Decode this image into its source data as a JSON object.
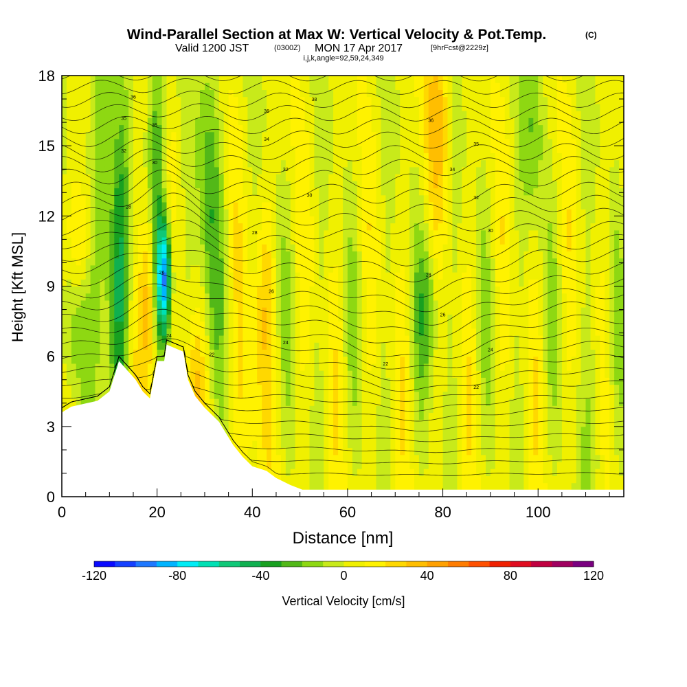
{
  "chart_data": {
    "type": "heatmap",
    "title": "Wind-Parallel Section at Max W: Vertical Velocity & Pot.Temp.",
    "title_mark": "(C)",
    "subtitle_main": "Valid 1200 JST",
    "subtitle_utc": "(0300Z)",
    "subtitle_date": "MON 17 Apr 2017",
    "subtitle_fcst": "[9hrFcst@2229z]",
    "subtitle_indices": "i,j,k,angle=92,59,24,349",
    "xlabel": "Distance [nm]",
    "ylabel": "Height [Kft MSL]",
    "colorbar_label": "Vertical Velocity [cm/s]",
    "xlim": [
      0,
      118
    ],
    "ylim": [
      0,
      18
    ],
    "x_ticks": [
      {
        "value": 0,
        "label": "0"
      },
      {
        "value": 20,
        "label": "20"
      },
      {
        "value": 40,
        "label": "40"
      },
      {
        "value": 60,
        "label": "60"
      },
      {
        "value": 80,
        "label": "80"
      },
      {
        "value": 100,
        "label": "100"
      }
    ],
    "y_ticks": [
      {
        "value": 0,
        "label": "0"
      },
      {
        "value": 3,
        "label": "3"
      },
      {
        "value": 6,
        "label": "6"
      },
      {
        "value": 9,
        "label": "9"
      },
      {
        "value": 12,
        "label": "12"
      },
      {
        "value": 15,
        "label": "15"
      },
      {
        "value": 18,
        "label": "18"
      }
    ],
    "colorbar_ticks": [
      {
        "value": -120,
        "label": "-120"
      },
      {
        "value": -80,
        "label": "-80"
      },
      {
        "value": -40,
        "label": "-40"
      },
      {
        "value": 0,
        "label": "0"
      },
      {
        "value": 40,
        "label": "40"
      },
      {
        "value": 80,
        "label": "80"
      },
      {
        "value": 120,
        "label": "120"
      }
    ],
    "colorbar_range": [
      -120,
      120
    ],
    "colorbar_colors": [
      "#0a0aff",
      "#1540ff",
      "#1e78ff",
      "#00b4ff",
      "#00ecf5",
      "#00e0b4",
      "#10c878",
      "#10b050",
      "#18a020",
      "#52b818",
      "#8ed812",
      "#c8ea1a",
      "#f0f000",
      "#fff200",
      "#ffd800",
      "#ffbe00",
      "#ffa000",
      "#ff7c00",
      "#ff5000",
      "#f02000",
      "#e00c20",
      "#c00040",
      "#a00060",
      "#7a0080"
    ],
    "terrain_profile": [
      [
        0,
        3.6
      ],
      [
        2,
        3.85
      ],
      [
        7.5,
        4.1
      ],
      [
        10,
        4.5
      ],
      [
        12,
        5.8
      ],
      [
        15.5,
        5.0
      ],
      [
        17,
        4.5
      ],
      [
        18.5,
        4.2
      ],
      [
        20,
        5.8
      ],
      [
        21.5,
        5.8
      ],
      [
        22,
        6.5
      ],
      [
        25.5,
        6.2
      ],
      [
        26.5,
        5.0
      ],
      [
        28,
        4.3
      ],
      [
        30,
        3.8
      ],
      [
        33,
        3.2
      ],
      [
        36,
        2.2
      ],
      [
        38,
        1.7
      ],
      [
        40,
        1.3
      ],
      [
        43,
        1.1
      ],
      [
        45,
        0.8
      ],
      [
        48,
        0.5
      ],
      [
        50.5,
        0.3
      ],
      [
        118,
        0.3
      ]
    ],
    "theta_contour_labels": [
      {
        "x": 15,
        "y": 17.1,
        "label": "36"
      },
      {
        "x": 13,
        "y": 16.2,
        "label": "35"
      },
      {
        "x": 19.5,
        "y": 15.9,
        "label": "35"
      },
      {
        "x": 13,
        "y": 14.8,
        "label": "32"
      },
      {
        "x": 19.5,
        "y": 14.3,
        "label": "30"
      },
      {
        "x": 14,
        "y": 12.4,
        "label": "28"
      },
      {
        "x": 21,
        "y": 9.6,
        "label": "26"
      },
      {
        "x": 22.5,
        "y": 6.9,
        "label": "24"
      },
      {
        "x": 31.5,
        "y": 6.1,
        "label": "22"
      },
      {
        "x": 40.5,
        "y": 11.3,
        "label": "28"
      },
      {
        "x": 44,
        "y": 8.8,
        "label": "26"
      },
      {
        "x": 47,
        "y": 6.6,
        "label": "24"
      },
      {
        "x": 43,
        "y": 16.5,
        "label": "36"
      },
      {
        "x": 43,
        "y": 15.3,
        "label": "34"
      },
      {
        "x": 47,
        "y": 14.0,
        "label": "32"
      },
      {
        "x": 52,
        "y": 12.9,
        "label": "30"
      },
      {
        "x": 53,
        "y": 17.0,
        "label": "38"
      },
      {
        "x": 77.5,
        "y": 16.1,
        "label": "36"
      },
      {
        "x": 87,
        "y": 15.1,
        "label": "35"
      },
      {
        "x": 82,
        "y": 14.0,
        "label": "34"
      },
      {
        "x": 87,
        "y": 12.8,
        "label": "32"
      },
      {
        "x": 90,
        "y": 11.4,
        "label": "30"
      },
      {
        "x": 77,
        "y": 9.5,
        "label": "28"
      },
      {
        "x": 80,
        "y": 7.8,
        "label": "26"
      },
      {
        "x": 90,
        "y": 6.3,
        "label": "24"
      },
      {
        "x": 68,
        "y": 5.7,
        "label": "22"
      },
      {
        "x": 87,
        "y": 4.7,
        "label": "22"
      }
    ]
  }
}
